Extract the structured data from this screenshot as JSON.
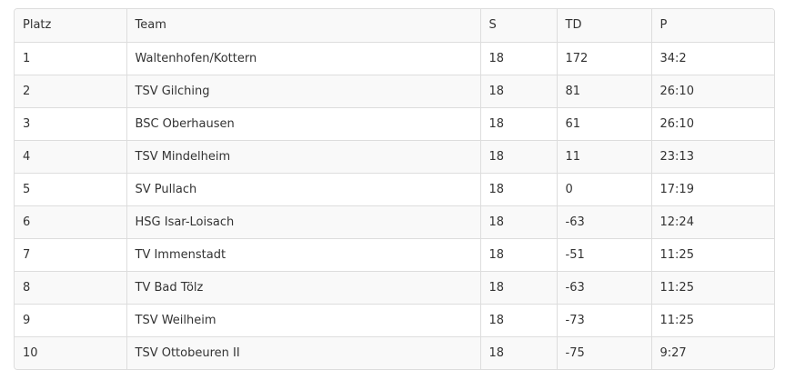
{
  "table": {
    "header": [
      "Platz",
      "Team",
      "S",
      "TD",
      "P"
    ],
    "rows": [
      [
        1,
        "Waltenhofen/Kottern",
        18,
        172,
        "34:2"
      ],
      [
        2,
        "TSV Gilching",
        18,
        81,
        "26:10"
      ],
      [
        3,
        "BSC Oberhausen",
        18,
        61,
        "26:10"
      ],
      [
        4,
        "TSV Mindelheim",
        18,
        11,
        "23:13"
      ],
      [
        5,
        "SV Pullach",
        18,
        0,
        "17:19"
      ],
      [
        6,
        "HSG Isar-Loisach",
        18,
        -63,
        "12:24"
      ],
      [
        7,
        "TV Immenstadt",
        18,
        -51,
        "11:25"
      ],
      [
        8,
        "TV Bad Tölz",
        18,
        -63,
        "11:25"
      ],
      [
        9,
        "TSV Weilheim",
        18,
        -73,
        "11:25"
      ],
      [
        10,
        "TSV Ottobeuren II",
        18,
        -75,
        "9:27"
      ]
    ]
  }
}
